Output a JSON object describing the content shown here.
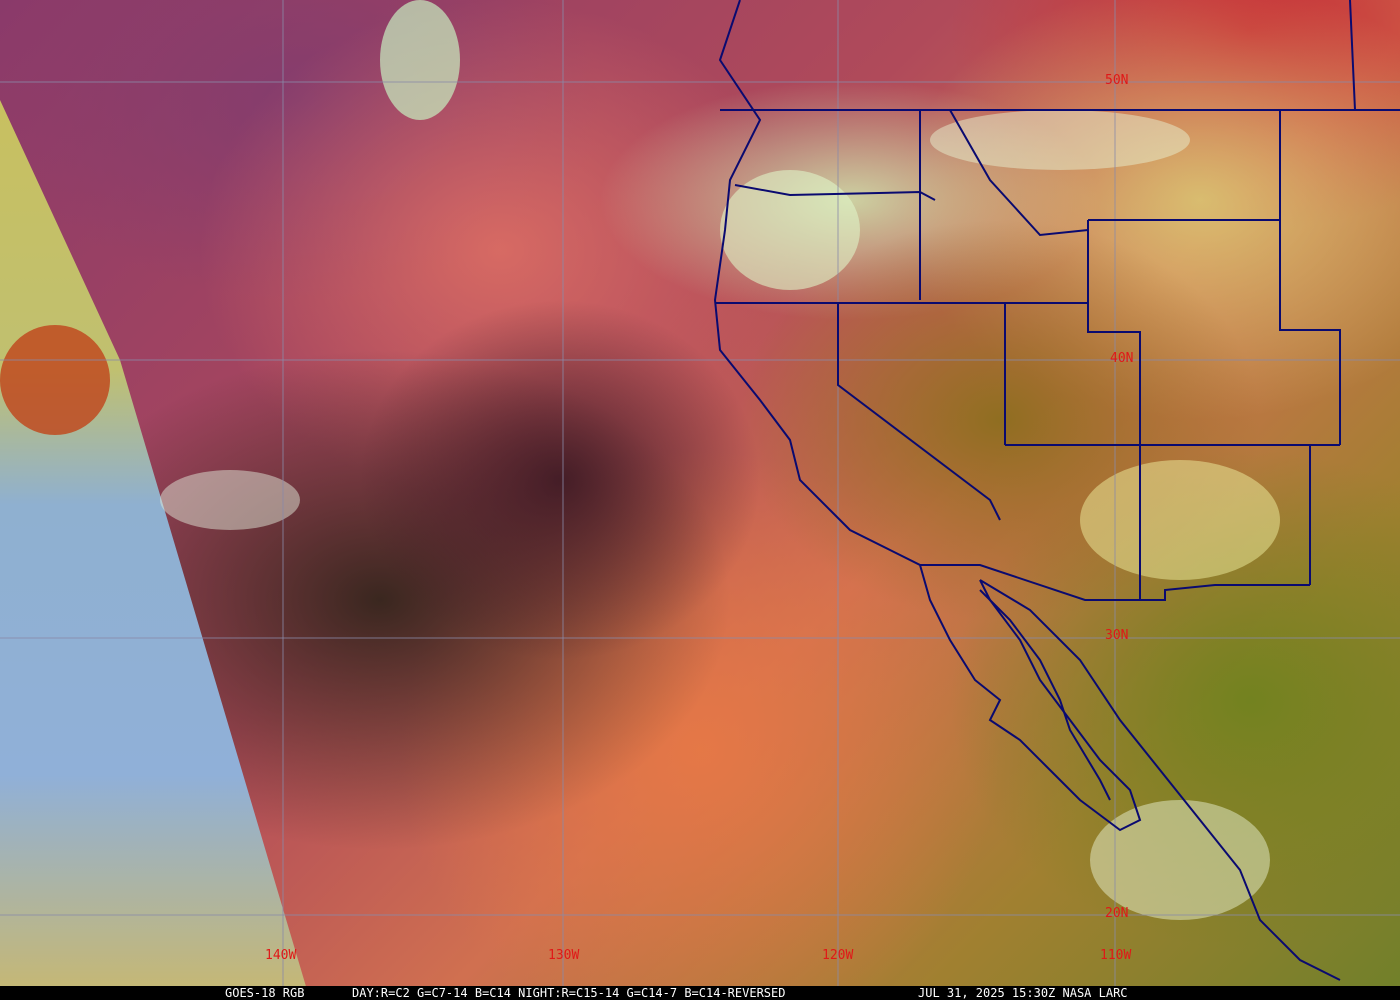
{
  "map": {
    "lon_labels": [
      "140W",
      "130W",
      "120W",
      "110W"
    ],
    "lat_labels": [
      "50N",
      "40N",
      "30N",
      "20N"
    ],
    "grid_color": "#8a8aa8",
    "label_color": "#e01818",
    "border_color": "#0a0a70"
  },
  "caption": {
    "product": "GOES-18 RGB",
    "recipe": "DAY:R=C2 G=C7-14 B=C14 NIGHT:R=C15-14 G=C14-7 B=C14-REVERSED",
    "timestamp": "JUL 31, 2025 15:30Z NASA LARC"
  }
}
